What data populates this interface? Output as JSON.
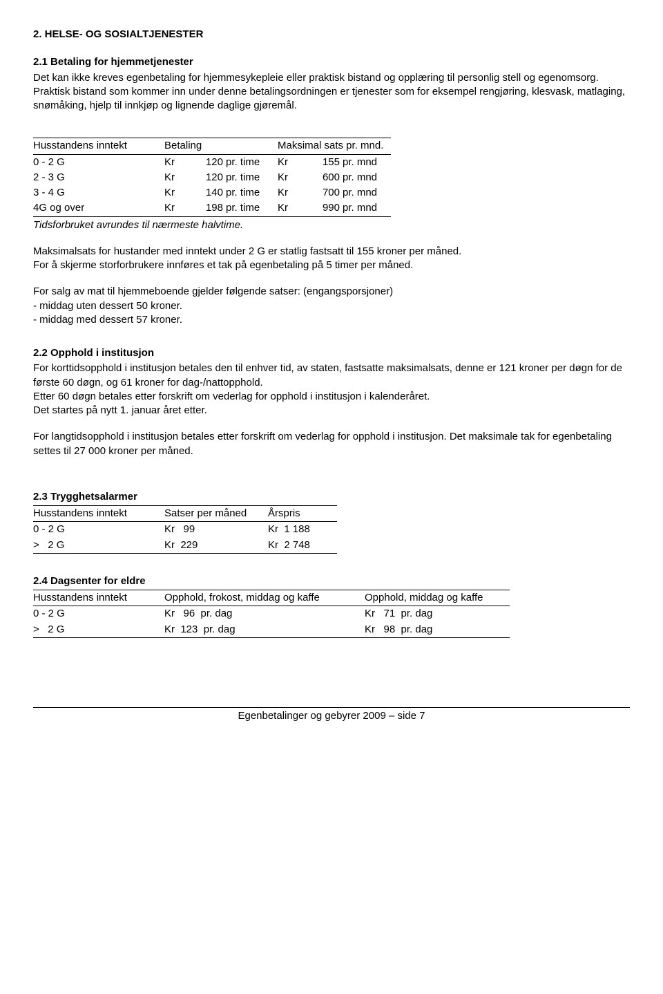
{
  "heading_main": "2. HELSE- OG SOSIALTJENESTER",
  "sec21": {
    "title": "2.1 Betaling for hjemmetjenester",
    "p1": "Det kan ikke kreves egenbetaling for hjemmesykepleie eller praktisk bistand og opplæring til personlig stell og egenomsorg.",
    "p2": "Praktisk bistand som kommer inn under denne betalingsordningen er tjenester som for eksempel rengjøring, klesvask, matlaging, snømåking, hjelp til innkjøp og lignende daglige gjøremål."
  },
  "table1": {
    "headers": [
      "Husstandens inntekt",
      "Betaling",
      "Maksimal sats pr. mnd."
    ],
    "rows": [
      {
        "col1": "0 - 2 G",
        "kr1": "Kr",
        "v1": "120",
        "unit1": "pr. time",
        "kr2": "Kr",
        "v2": "155",
        "unit2": "pr. mnd"
      },
      {
        "col1": "2 - 3 G",
        "kr1": "Kr",
        "v1": "120",
        "unit1": "pr. time",
        "kr2": "Kr",
        "v2": "600",
        "unit2": "pr. mnd"
      },
      {
        "col1": "3 - 4 G",
        "kr1": "Kr",
        "v1": "140",
        "unit1": "pr. time",
        "kr2": "Kr",
        "v2": "700",
        "unit2": "pr. mnd"
      },
      {
        "col1": "4G og over",
        "kr1": "Kr",
        "v1": "198",
        "unit1": "pr. time",
        "kr2": "Kr",
        "v2": "990",
        "unit2": "pr. mnd"
      }
    ],
    "note": "Tidsforbruket avrundes til nærmeste halvtime."
  },
  "sec21b": {
    "p1": "Maksimalsats for hustander med inntekt under 2 G er statlig fastsatt til 155 kroner per måned.",
    "p2": "For å skjerme storforbrukere innføres et tak på egenbetaling på 5 timer per måned.",
    "p3": "For salg av mat til hjemmeboende gjelder følgende satser: (engangsporsjoner)",
    "li1": "- middag uten dessert  50 kroner.",
    "li2": "- middag med dessert  57 kroner."
  },
  "sec22": {
    "title": "2.2 Opphold i institusjon",
    "p1": "For korttidsopphold i institusjon betales den til enhver tid, av staten, fastsatte maksimalsats, denne er 121 kroner per døgn for de første 60 døgn, og 61 kroner for dag-/nattopphold.",
    "p2": "Etter 60 døgn betales etter forskrift om vederlag for opphold i institusjon i kalenderåret.",
    "p3": "Det startes på nytt 1. januar året etter.",
    "p4": "For langtidsopphold i institusjon betales etter forskrift om vederlag for opphold i institusjon. Det maksimale tak for egenbetaling settes til 27 000 kroner per måned."
  },
  "sec23": {
    "title": "2.3 Trygghetsalarmer"
  },
  "table2": {
    "headers": [
      "Husstandens inntekt",
      "Satser per måned",
      "Årspris"
    ],
    "rows": [
      {
        "c1": "0 - 2 G",
        "c2": "Kr   99",
        "c3": "Kr  1 188"
      },
      {
        "c1": ">   2 G",
        "c2": "Kr  229",
        "c3": "Kr  2 748"
      }
    ]
  },
  "sec24": {
    "title": "2.4 Dagsenter for eldre"
  },
  "table3": {
    "headers": [
      "Husstandens inntekt",
      "Opphold, frokost, middag og kaffe",
      "Opphold, middag og kaffe"
    ],
    "rows": [
      {
        "c1": "0 - 2 G",
        "c2": "Kr   96  pr. dag",
        "c3": "Kr   71  pr. dag"
      },
      {
        "c1": ">   2 G",
        "c2": "Kr  123  pr. dag",
        "c3": "Kr   98  pr. dag"
      }
    ]
  },
  "footer": "Egenbetalinger og gebyrer 2009 – side 7"
}
